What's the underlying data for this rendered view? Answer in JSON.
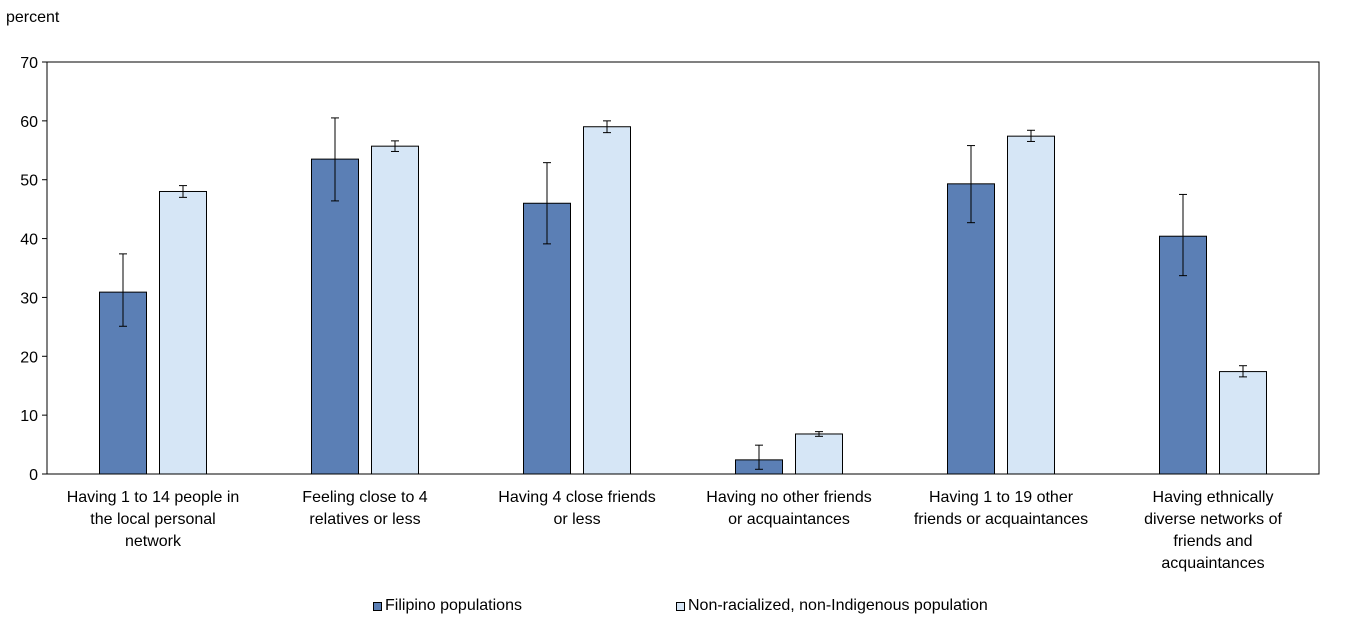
{
  "chart_data": {
    "type": "bar",
    "ylabel": "percent",
    "ylim": [
      0,
      70
    ],
    "yticks": [
      0,
      10,
      20,
      30,
      40,
      50,
      60,
      70
    ],
    "grid": false,
    "legend_position": "bottom",
    "categories": [
      [
        "Having 1 to 14 people in",
        "the local personal",
        "network"
      ],
      [
        "Feeling close to 4",
        "relatives or less"
      ],
      [
        "Having 4 close friends",
        "or less"
      ],
      [
        "Having no other friends",
        "or acquaintances"
      ],
      [
        "Having 1 to 19 other",
        "friends or acquaintances"
      ],
      [
        "Having ethnically",
        "diverse networks of",
        "friends and",
        "acquaintances"
      ]
    ],
    "series": [
      {
        "name": "Filipino populations",
        "color": "#5b7fb5",
        "values": [
          30.9,
          53.5,
          46.0,
          2.4,
          49.3,
          40.4
        ],
        "error_low": [
          25.1,
          46.4,
          39.1,
          0.8,
          42.7,
          33.7
        ],
        "error_high": [
          37.4,
          60.5,
          52.9,
          4.9,
          55.8,
          47.5
        ]
      },
      {
        "name": "Non-racialized, non-Indigenous population",
        "color": "#d6e6f6",
        "values": [
          48.0,
          55.7,
          59.0,
          6.8,
          57.4,
          17.4
        ],
        "error_low": [
          47.0,
          54.8,
          58.0,
          6.4,
          56.5,
          16.5
        ],
        "error_high": [
          49.0,
          56.6,
          60.0,
          7.2,
          58.4,
          18.4
        ]
      }
    ]
  }
}
